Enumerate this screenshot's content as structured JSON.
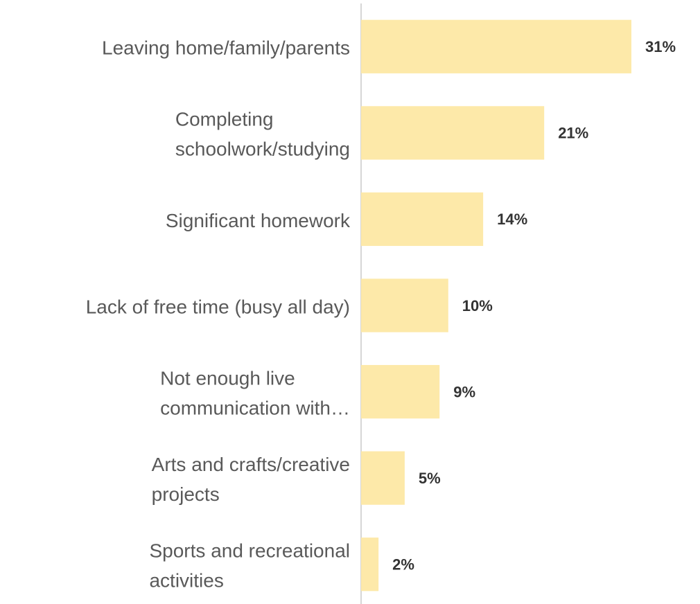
{
  "chart_data": {
    "type": "hbar",
    "categories": [
      [
        "Leaving home/family/parents"
      ],
      [
        "Completing",
        "schoolwork/studying"
      ],
      [
        "Significant homework"
      ],
      [
        "Lack of free time (busy all day)"
      ],
      [
        "Not enough live",
        "communication with…"
      ],
      [
        "Arts and crafts/creative",
        "projects"
      ],
      [
        "Sports and recreational",
        "activities"
      ]
    ],
    "values": [
      31,
      21,
      14,
      10,
      9,
      5,
      2
    ],
    "value_labels": [
      "31%",
      "21%",
      "14%",
      "10%",
      "9%",
      "5%",
      "2%"
    ],
    "color": "#fde9a9",
    "xlim": [
      0,
      31
    ]
  }
}
